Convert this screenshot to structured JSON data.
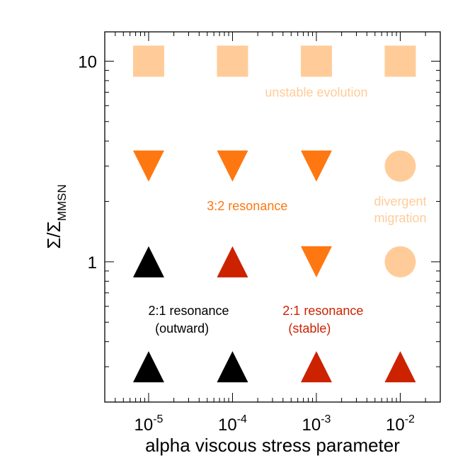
{
  "chart_data": {
    "type": "scatter",
    "title": "",
    "xlabel": "alpha viscous stress parameter",
    "ylabel": "Σ/Σ",
    "ylabel_subscript": "MMSN",
    "xscale": "log",
    "yscale": "log",
    "xlim": [
      3e-06,
      0.03
    ],
    "ylim": [
      0.2,
      14
    ],
    "x_tick_labels": [
      {
        "value": 1e-05,
        "base": "10",
        "exp": "-5"
      },
      {
        "value": 0.0001,
        "base": "10",
        "exp": "-4"
      },
      {
        "value": 0.001,
        "base": "10",
        "exp": "-3"
      },
      {
        "value": 0.01,
        "base": "10",
        "exp": "-2"
      }
    ],
    "y_tick_labels": [
      {
        "value": 1,
        "label": "1"
      },
      {
        "value": 10,
        "label": "10"
      }
    ],
    "colors": {
      "unstable": "#FFCC99",
      "resonance_3_2": "#FF7711",
      "resonance_2_1_stable": "#CC2200",
      "resonance_2_1_outward": "#000000"
    },
    "points": [
      {
        "x": 1e-05,
        "y": 10,
        "marker": "square",
        "category": "unstable"
      },
      {
        "x": 0.0001,
        "y": 10,
        "marker": "square",
        "category": "unstable"
      },
      {
        "x": 0.001,
        "y": 10,
        "marker": "square",
        "category": "unstable"
      },
      {
        "x": 0.01,
        "y": 10,
        "marker": "square",
        "category": "unstable"
      },
      {
        "x": 1e-05,
        "y": 3,
        "marker": "triangle-down",
        "category": "resonance_3_2"
      },
      {
        "x": 0.0001,
        "y": 3,
        "marker": "triangle-down",
        "category": "resonance_3_2"
      },
      {
        "x": 0.001,
        "y": 3,
        "marker": "triangle-down",
        "category": "resonance_3_2"
      },
      {
        "x": 0.01,
        "y": 3,
        "marker": "circle",
        "category": "unstable"
      },
      {
        "x": 1e-05,
        "y": 1,
        "marker": "triangle-up",
        "category": "resonance_2_1_outward"
      },
      {
        "x": 0.0001,
        "y": 1,
        "marker": "triangle-up",
        "category": "resonance_2_1_stable"
      },
      {
        "x": 0.001,
        "y": 1,
        "marker": "triangle-down",
        "category": "resonance_3_2"
      },
      {
        "x": 0.01,
        "y": 1,
        "marker": "circle",
        "category": "unstable"
      },
      {
        "x": 1e-05,
        "y": 0.3,
        "marker": "triangle-up",
        "category": "resonance_2_1_outward"
      },
      {
        "x": 0.0001,
        "y": 0.3,
        "marker": "triangle-up",
        "category": "resonance_2_1_outward"
      },
      {
        "x": 0.001,
        "y": 0.3,
        "marker": "triangle-up",
        "category": "resonance_2_1_stable"
      },
      {
        "x": 0.01,
        "y": 0.3,
        "marker": "triangle-up",
        "category": "resonance_2_1_stable"
      }
    ],
    "annotations": [
      {
        "text": "unstable evolution",
        "x": 0.001,
        "y": 7,
        "category": "unstable"
      },
      {
        "text": "divergent",
        "x": 0.01,
        "y": 2.0,
        "category": "unstable"
      },
      {
        "text": "migration",
        "x": 0.01,
        "y": 1.65,
        "category": "unstable"
      },
      {
        "text": "3:2 resonance",
        "x": 0.00015,
        "y": 1.9,
        "category": "resonance_3_2"
      },
      {
        "text": "2:1 resonance",
        "x": 3e-05,
        "y": 0.57,
        "category": "resonance_2_1_outward"
      },
      {
        "text": "(outward)",
        "x": 2.5e-05,
        "y": 0.465,
        "category": "resonance_2_1_outward"
      },
      {
        "text": "2:1 resonance",
        "x": 0.0012,
        "y": 0.57,
        "category": "resonance_2_1_stable"
      },
      {
        "text": "(stable)",
        "x": 0.00083,
        "y": 0.465,
        "category": "resonance_2_1_stable"
      }
    ]
  }
}
